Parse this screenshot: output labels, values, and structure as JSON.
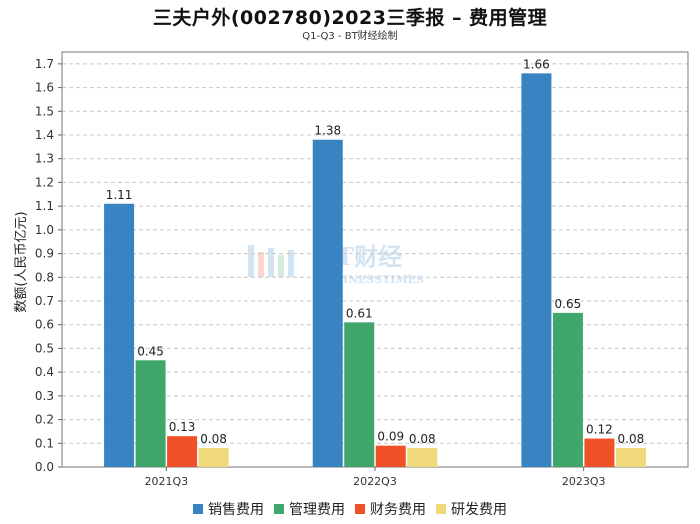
{
  "chart_data": {
    "type": "bar",
    "title": "三夫户外(002780)2023三季报 – 费用管理",
    "subtitle": "Q1-Q3 - BT财经绘制",
    "categories": [
      "2021Q3",
      "2022Q3",
      "2023Q3"
    ],
    "series": [
      {
        "name": "销售费用",
        "color": "#3883c2",
        "values": [
          1.11,
          1.38,
          1.66
        ]
      },
      {
        "name": "管理费用",
        "color": "#3fa76b",
        "values": [
          0.45,
          0.61,
          0.65
        ]
      },
      {
        "name": "财务费用",
        "color": "#ef5228",
        "values": [
          0.13,
          0.09,
          0.12
        ]
      },
      {
        "name": "研发费用",
        "color": "#f0d97a",
        "values": [
          0.08,
          0.08,
          0.08
        ]
      }
    ],
    "xlabel": "",
    "ylabel": "数额(人民币亿元)",
    "ylim": [
      0,
      1.75
    ],
    "yticks": [
      "0.0",
      "0.1",
      "0.2",
      "0.3",
      "0.4",
      "0.5",
      "0.6",
      "0.7",
      "0.8",
      "0.9",
      "1.0",
      "1.1",
      "1.2",
      "1.3",
      "1.4",
      "1.5",
      "1.6",
      "1.7"
    ],
    "grid": true,
    "legend_position": "bottom-center"
  },
  "watermark": {
    "main": "BT财经",
    "sub": "BUSINESSTIMES"
  }
}
